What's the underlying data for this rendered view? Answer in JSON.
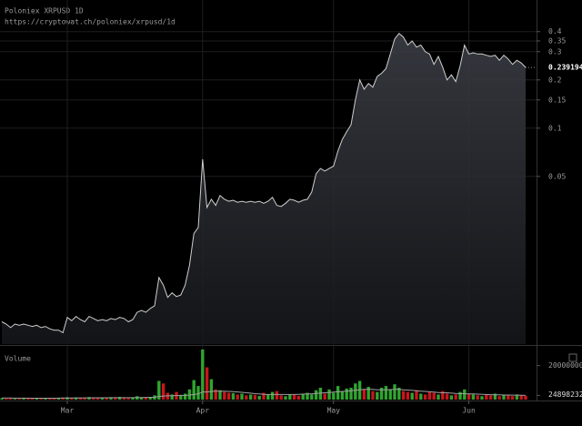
{
  "chart_data": [
    {
      "type": "line",
      "title": "Poloniex XRPUSD 1D",
      "subtitle": "https://cryptowat.ch/poloniex/xrpusd/1d",
      "categories": [
        null,
        null,
        null,
        null,
        null,
        null,
        null,
        null,
        null,
        null,
        null,
        null,
        null,
        null,
        null,
        "Mar",
        null,
        null,
        null,
        null,
        null,
        null,
        null,
        null,
        null,
        null,
        null,
        null,
        null,
        null,
        null,
        null,
        null,
        null,
        null,
        null,
        null,
        null,
        null,
        null,
        null,
        null,
        null,
        null,
        null,
        null,
        "Apr",
        null,
        null,
        null,
        null,
        null,
        null,
        null,
        null,
        null,
        null,
        null,
        null,
        null,
        null,
        null,
        null,
        null,
        null,
        null,
        null,
        null,
        null,
        null,
        null,
        null,
        null,
        null,
        null,
        null,
        "May",
        null,
        null,
        null,
        null,
        null,
        null,
        null,
        null,
        null,
        null,
        null,
        null,
        null,
        null,
        null,
        null,
        null,
        null,
        null,
        null,
        null,
        null,
        null,
        null,
        null,
        null,
        null,
        null,
        null,
        null,
        "Jun",
        null,
        null,
        null,
        null,
        null,
        null,
        null,
        null,
        null,
        null,
        null,
        null,
        null
      ],
      "values": [
        0.0062,
        0.006,
        0.0057,
        0.006,
        0.0059,
        0.006,
        0.0059,
        0.0058,
        0.0059,
        0.0057,
        0.0058,
        0.0056,
        0.0055,
        0.0055,
        0.0053,
        0.0066,
        0.0063,
        0.0067,
        0.0064,
        0.0062,
        0.0067,
        0.0065,
        0.0063,
        0.0064,
        0.0063,
        0.0065,
        0.0064,
        0.0066,
        0.0065,
        0.0062,
        0.0064,
        0.0071,
        0.0073,
        0.0071,
        0.0075,
        0.0078,
        0.0117,
        0.0105,
        0.0088,
        0.0094,
        0.0089,
        0.0091,
        0.0105,
        0.014,
        0.022,
        0.024,
        0.064,
        0.032,
        0.036,
        0.033,
        0.038,
        0.036,
        0.035,
        0.0355,
        0.0345,
        0.035,
        0.0345,
        0.035,
        0.0345,
        0.035,
        0.034,
        0.035,
        0.037,
        0.033,
        0.0325,
        0.034,
        0.036,
        0.0355,
        0.0345,
        0.0355,
        0.036,
        0.04,
        0.052,
        0.056,
        0.054,
        0.056,
        0.058,
        0.072,
        0.085,
        0.095,
        0.105,
        0.15,
        0.2,
        0.175,
        0.19,
        0.18,
        0.21,
        0.22,
        0.235,
        0.29,
        0.36,
        0.39,
        0.37,
        0.33,
        0.35,
        0.32,
        0.33,
        0.3,
        0.29,
        0.25,
        0.28,
        0.24,
        0.2,
        0.215,
        0.195,
        0.245,
        0.33,
        0.29,
        0.295,
        0.29,
        0.29,
        0.285,
        0.28,
        0.285,
        0.265,
        0.285,
        0.27,
        0.25,
        0.265,
        0.255,
        0.239194
      ],
      "last_label": "0.2391940",
      "color": "#cfcfcf",
      "yscale": "log",
      "ylim": [
        0.0045,
        0.63
      ],
      "yticks": [
        0.05,
        0.1,
        0.15,
        0.2,
        0.3,
        0.35,
        0.4
      ],
      "grid": true
    },
    {
      "type": "bar",
      "title": "Volume",
      "values": [
        8000000,
        6000000,
        7000000,
        5000000,
        6000000,
        9000000,
        7000000,
        6000000,
        8000000,
        5000000,
        6000000,
        7000000,
        9000000,
        10000000,
        12000000,
        14000000,
        10000000,
        12000000,
        9000000,
        11000000,
        15000000,
        8000000,
        10000000,
        12000000,
        9000000,
        14000000,
        11000000,
        16000000,
        10000000,
        8000000,
        12000000,
        20000000,
        12000000,
        14000000,
        16000000,
        25000000,
        110000000,
        95000000,
        40000000,
        30000000,
        45000000,
        28000000,
        35000000,
        60000000,
        115000000,
        80000000,
        295000000,
        190000000,
        120000000,
        60000000,
        55000000,
        45000000,
        40000000,
        38000000,
        30000000,
        35000000,
        25000000,
        30000000,
        28000000,
        22000000,
        40000000,
        30000000,
        45000000,
        50000000,
        25000000,
        20000000,
        30000000,
        28000000,
        22000000,
        35000000,
        40000000,
        30000000,
        55000000,
        70000000,
        35000000,
        60000000,
        40000000,
        80000000,
        50000000,
        65000000,
        70000000,
        95000000,
        110000000,
        60000000,
        75000000,
        50000000,
        45000000,
        70000000,
        80000000,
        60000000,
        90000000,
        70000000,
        50000000,
        45000000,
        40000000,
        55000000,
        35000000,
        30000000,
        45000000,
        40000000,
        30000000,
        50000000,
        35000000,
        25000000,
        30000000,
        45000000,
        60000000,
        35000000,
        30000000,
        25000000,
        20000000,
        30000000,
        25000000,
        35000000,
        20000000,
        30000000,
        25000000,
        20000000,
        30000000,
        25000000,
        22000000
      ],
      "ma_values": [
        9000000,
        9000000,
        9000000,
        8800000,
        8600000,
        8500000,
        8400000,
        8300000,
        8200000,
        8100000,
        8000000,
        8000000,
        8200000,
        8500000,
        9000000,
        9500000,
        9800000,
        10000000,
        10000000,
        10200000,
        10500000,
        10500000,
        10600000,
        10800000,
        10800000,
        11000000,
        11000000,
        11200000,
        11300000,
        11200000,
        11300000,
        12000000,
        12500000,
        13000000,
        13500000,
        14000000,
        18000000,
        21000000,
        22000000,
        22500000,
        23500000,
        24000000,
        24500000,
        26000000,
        30000000,
        33000000,
        45000000,
        45000000,
        48000000,
        50000000,
        50000000,
        49000000,
        48000000,
        47000000,
        45000000,
        43000000,
        40000000,
        38000000,
        35000000,
        33000000,
        31000000,
        30000000,
        30000000,
        30000000,
        30000000,
        30000000,
        30000000,
        30000000,
        31000000,
        32000000,
        33000000,
        34000000,
        36000000,
        38000000,
        40000000,
        42000000,
        44000000,
        46000000,
        48000000,
        50000000,
        52000000,
        55000000,
        58000000,
        60000000,
        60000000,
        60000000,
        58000000,
        58000000,
        58000000,
        59000000,
        60000000,
        60000000,
        58000000,
        56000000,
        54000000,
        52000000,
        50000000,
        48000000,
        46000000,
        44000000,
        42000000,
        40000000,
        40000000,
        38000000,
        36000000,
        35000000,
        35000000,
        34000000,
        33000000,
        32000000,
        31000000,
        30000000,
        29000000,
        28000000,
        28000000,
        27000000,
        27000000,
        26000000,
        26000000,
        25000000,
        24898232
      ],
      "up_color": "#2fa52f",
      "down_color": "#c8161d",
      "ma_color": "#a0a0a0",
      "ylim": [
        0,
        300000000
      ],
      "yticks": [
        200000000
      ]
    }
  ]
}
